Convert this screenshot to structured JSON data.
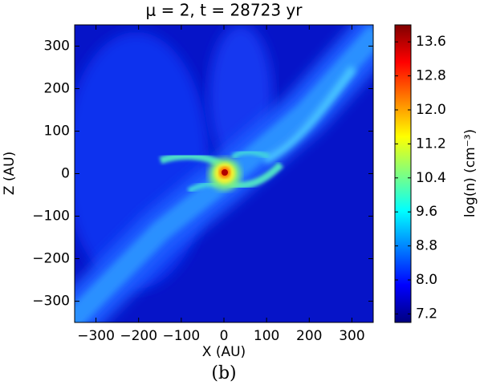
{
  "chart_data": {
    "type": "heatmap",
    "title": "μ = 2, t = 28723 yr",
    "xlabel": "X (AU)",
    "ylabel": "Z (AU)",
    "caption": "(b)",
    "xlim": [
      -350,
      350
    ],
    "ylim": [
      -350,
      350
    ],
    "xticks": [
      {
        "value": -300,
        "label": "−300"
      },
      {
        "value": -200,
        "label": "−200"
      },
      {
        "value": -100,
        "label": "−100"
      },
      0,
      100,
      200,
      300
    ],
    "yticks": [
      {
        "value": -300,
        "label": "−300"
      },
      {
        "value": -200,
        "label": "−200"
      },
      {
        "value": -100,
        "label": "−100"
      },
      0,
      100,
      200,
      300
    ],
    "colorbar": {
      "label": "log(n) (cm⁻³)",
      "colormap": "jet",
      "clim": [
        7.0,
        14.0
      ],
      "ticks": [
        {
          "value": 7.2,
          "label": "7.2"
        },
        {
          "value": 8,
          "label": "8.0"
        },
        {
          "value": 8.8,
          "label": "8.8"
        },
        {
          "value": 9.6,
          "label": "9.6"
        },
        {
          "value": 10.4,
          "label": "10.4"
        },
        {
          "value": 11.2,
          "label": "11.2"
        },
        {
          "value": 12,
          "label": "12.0"
        },
        {
          "value": 12.8,
          "label": "12.8"
        },
        {
          "value": 13.6,
          "label": "13.6"
        }
      ]
    }
  }
}
